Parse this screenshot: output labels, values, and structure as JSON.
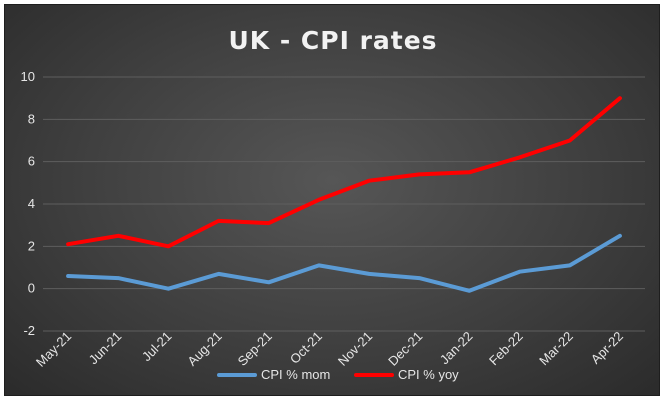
{
  "chart_data": {
    "type": "line",
    "title": "UK - CPI rates",
    "categories": [
      "May-21",
      "Jun-21",
      "Jul-21",
      "Aug-21",
      "Sep-21",
      "Oct-21",
      "Nov-21",
      "Dec-21",
      "Jan-22",
      "Feb-22",
      "Mar-22",
      "Apr-22"
    ],
    "ylim": [
      -2,
      10
    ],
    "yticks": [
      -2,
      0,
      2,
      4,
      6,
      8,
      10
    ],
    "grid": true,
    "legend_position": "bottom",
    "series": [
      {
        "name": "CPI % mom",
        "color": "#5b9bd5",
        "values": [
          0.6,
          0.5,
          0.0,
          0.7,
          0.3,
          1.1,
          0.7,
          0.5,
          -0.1,
          0.8,
          1.1,
          2.5
        ]
      },
      {
        "name": "CPI % yoy",
        "color": "#ff0000",
        "values": [
          2.1,
          2.5,
          2.0,
          3.2,
          3.1,
          4.2,
          5.1,
          5.4,
          5.5,
          6.2,
          7.0,
          9.0
        ]
      }
    ]
  }
}
